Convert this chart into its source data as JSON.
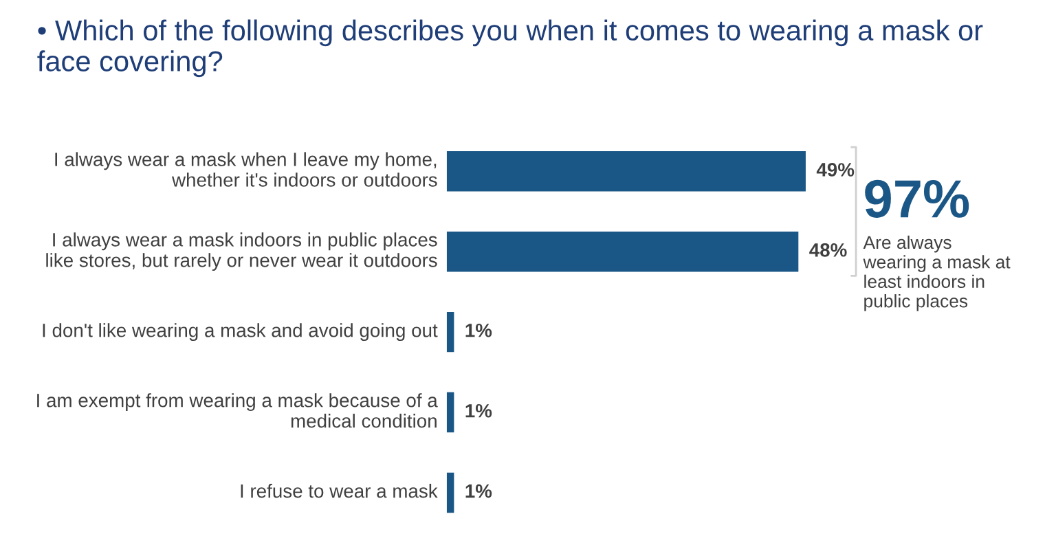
{
  "chart_data": {
    "type": "bar",
    "orientation": "horizontal",
    "title": "• Which of the following describes you when it comes to wearing a mask or face covering?",
    "categories": [
      "I always wear a mask when I leave my home, whether it's indoors or outdoors",
      "I always wear a mask indoors in public places like stores, but rarely or never wear it outdoors",
      "I don't like wearing a mask and avoid going out",
      "I am exempt from wearing a mask because of a medical condition",
      "I refuse to wear a mask"
    ],
    "values": [
      49,
      48,
      1,
      1,
      1
    ],
    "value_labels": [
      "49%",
      "48%",
      "1%",
      "1%",
      "1%"
    ],
    "color": "#1b5786",
    "annotations": [
      "97%",
      "Are always wearing a mask at least indoors in public places"
    ]
  }
}
